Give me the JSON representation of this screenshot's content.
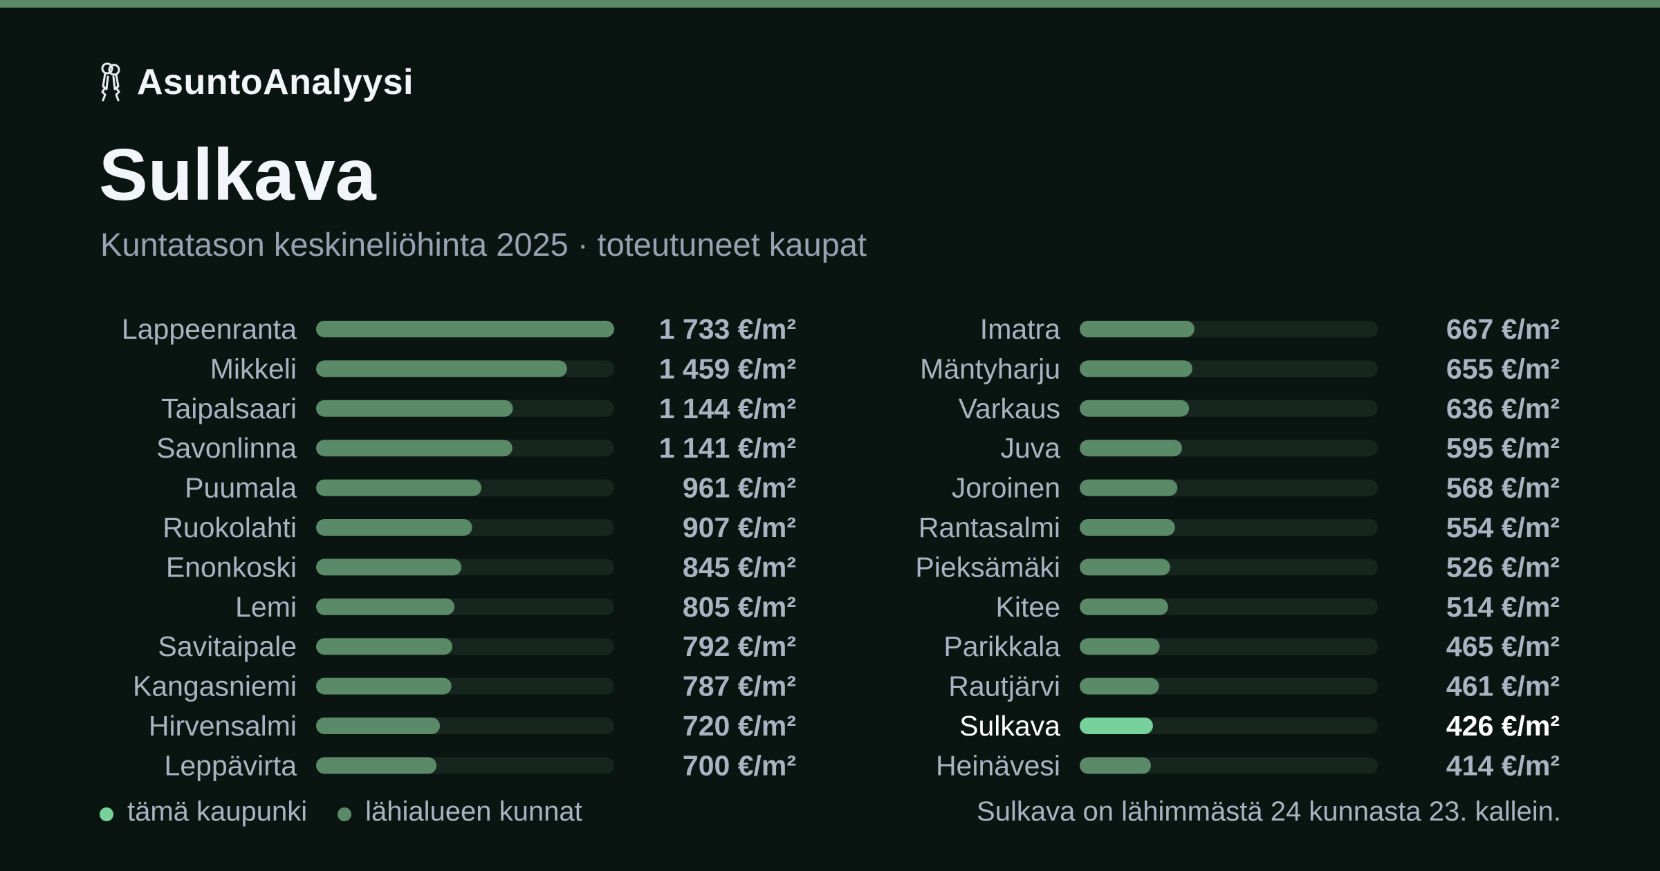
{
  "brand": {
    "name": "AsuntoAnalyysi",
    "icon": "keys-icon"
  },
  "page": {
    "title": "Sulkava",
    "subtitle": "Kuntatason keskineliöhinta 2025 · toteutuneet kaupat"
  },
  "colors": {
    "background": "#0a1512",
    "top_bar": "#5b8a68",
    "bar_nearby": "#5b8a68",
    "bar_highlight": "#77d19b",
    "bar_track": "#16261f",
    "text": "#a9b3c1",
    "text_highlight": "#ffffff"
  },
  "chart_data": {
    "type": "bar",
    "orientation": "horizontal",
    "unit": "€/m²",
    "highlight": "Sulkava",
    "xlim": [
      0,
      1733
    ],
    "categories": [
      "Lappeenranta",
      "Mikkeli",
      "Taipalsaari",
      "Savonlinna",
      "Puumala",
      "Ruokolahti",
      "Enonkoski",
      "Lemi",
      "Savitaipale",
      "Kangasniemi",
      "Hirvensalmi",
      "Leppävirta",
      "Imatra",
      "Mäntyharju",
      "Varkaus",
      "Juva",
      "Joroinen",
      "Rantasalmi",
      "Pieksämäki",
      "Kitee",
      "Parikkala",
      "Rautjärvi",
      "Sulkava",
      "Heinävesi"
    ],
    "values": [
      1733,
      1459,
      1144,
      1141,
      961,
      907,
      845,
      805,
      792,
      787,
      720,
      700,
      667,
      655,
      636,
      595,
      568,
      554,
      526,
      514,
      465,
      461,
      426,
      414
    ],
    "value_labels": [
      "1 733 €/m²",
      "1 459 €/m²",
      "1 144 €/m²",
      "1 141 €/m²",
      "961 €/m²",
      "907 €/m²",
      "845 €/m²",
      "805 €/m²",
      "792 €/m²",
      "787 €/m²",
      "720 €/m²",
      "700 €/m²",
      "667 €/m²",
      "655 €/m²",
      "636 €/m²",
      "595 €/m²",
      "568 €/m²",
      "554 €/m²",
      "526 €/m²",
      "514 €/m²",
      "465 €/m²",
      "461 €/m²",
      "426 €/m²",
      "414 €/m²"
    ]
  },
  "legend": {
    "this_city": "tämä kaupunki",
    "nearby": "lähialueen kunnat"
  },
  "footnote": "Sulkava on lähimmästä 24 kunnasta 23. kallein."
}
